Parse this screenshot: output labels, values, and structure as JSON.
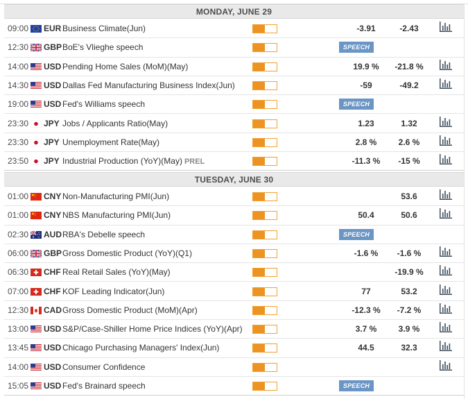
{
  "impact_colors": {
    "fill": "#ec9322",
    "border": "#f0a030"
  },
  "days": [
    {
      "header": "MONDAY, JUNE 29",
      "events": [
        {
          "time": "09:00",
          "flag": "eu",
          "currency": "EUR",
          "event": "Business Climate(Jun)",
          "impact": 0.5,
          "actual": "-3.91",
          "consensus": "-2.43",
          "chart": true
        },
        {
          "time": "12:30",
          "flag": "gb",
          "currency": "GBP",
          "event": "BoE's Vlieghe speech",
          "impact": 0.5,
          "speech": "SPEECH",
          "chart": false
        },
        {
          "time": "14:00",
          "flag": "us",
          "currency": "USD",
          "event": "Pending Home Sales (MoM)(May)",
          "impact": 0.5,
          "actual": "19.9 %",
          "consensus": "-21.8 %",
          "chart": true
        },
        {
          "time": "14:30",
          "flag": "us",
          "currency": "USD",
          "event": "Dallas Fed Manufacturing Business Index(Jun)",
          "impact": 0.5,
          "actual": "-59",
          "consensus": "-49.2",
          "chart": true
        },
        {
          "time": "19:00",
          "flag": "us",
          "currency": "USD",
          "event": "Fed's Williams speech",
          "impact": 0.5,
          "speech": "SPEECH",
          "chart": false
        },
        {
          "time": "23:30",
          "flag": "jp",
          "currency": "JPY",
          "event": "Jobs / Applicants Ratio(May)",
          "impact": 0.5,
          "actual": "1.23",
          "consensus": "1.32",
          "chart": true
        },
        {
          "time": "23:30",
          "flag": "jp",
          "currency": "JPY",
          "event": "Unemployment Rate(May)",
          "impact": 0.5,
          "actual": "2.8 %",
          "consensus": "2.6 %",
          "chart": true
        },
        {
          "time": "23:50",
          "flag": "jp",
          "currency": "JPY",
          "event": "Industrial Production (YoY)(May)",
          "prel": "PREL",
          "impact": 0.5,
          "actual": "-11.3 %",
          "consensus": "-15 %",
          "chart": true
        }
      ]
    },
    {
      "header": "TUESDAY, JUNE 30",
      "events": [
        {
          "time": "01:00",
          "flag": "cn",
          "currency": "CNY",
          "event": "Non-Manufacturing PMI(Jun)",
          "impact": 0.5,
          "consensus": "53.6",
          "chart": true
        },
        {
          "time": "01:00",
          "flag": "cn",
          "currency": "CNY",
          "event": "NBS Manufacturing PMI(Jun)",
          "impact": 0.5,
          "actual": "50.4",
          "consensus": "50.6",
          "chart": true
        },
        {
          "time": "02:30",
          "flag": "au",
          "currency": "AUD",
          "event": "RBA's Debelle speech",
          "impact": 0.5,
          "speech": "SPEECH",
          "chart": false
        },
        {
          "time": "06:00",
          "flag": "gb",
          "currency": "GBP",
          "event": "Gross Domestic Product (YoY)(Q1)",
          "impact": 0.5,
          "actual": "-1.6 %",
          "consensus": "-1.6 %",
          "chart": true
        },
        {
          "time": "06:30",
          "flag": "ch",
          "currency": "CHF",
          "event": "Real Retail Sales (YoY)(May)",
          "impact": 0.5,
          "consensus": "-19.9 %",
          "chart": true
        },
        {
          "time": "07:00",
          "flag": "ch",
          "currency": "CHF",
          "event": "KOF Leading Indicator(Jun)",
          "impact": 0.5,
          "actual": "77",
          "consensus": "53.2",
          "chart": true
        },
        {
          "time": "12:30",
          "flag": "ca",
          "currency": "CAD",
          "event": "Gross Domestic Product (MoM)(Apr)",
          "impact": 0.5,
          "actual": "-12.3 %",
          "consensus": "-7.2 %",
          "chart": true
        },
        {
          "time": "13:00",
          "flag": "us",
          "currency": "USD",
          "event": "S&P/Case-Shiller Home Price Indices (YoY)(Apr)",
          "impact": 0.5,
          "actual": "3.7 %",
          "consensus": "3.9 %",
          "chart": true
        },
        {
          "time": "13:45",
          "flag": "us",
          "currency": "USD",
          "event": "Chicago Purchasing Managers' Index(Jun)",
          "impact": 0.5,
          "actual": "44.5",
          "consensus": "32.3",
          "chart": true
        },
        {
          "time": "14:00",
          "flag": "us",
          "currency": "USD",
          "event": "Consumer Confidence",
          "impact": 0.5,
          "chart": true
        },
        {
          "time": "15:05",
          "flag": "us",
          "currency": "USD",
          "event": "Fed's Brainard speech",
          "impact": 0.5,
          "speech": "SPEECH",
          "chart": false
        }
      ]
    }
  ]
}
